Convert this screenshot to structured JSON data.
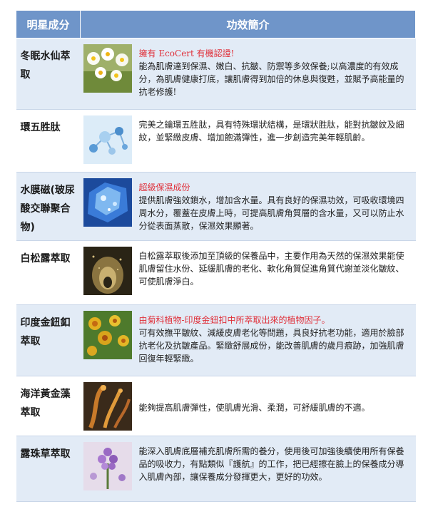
{
  "table": {
    "headers": {
      "ingredient": "明星成分",
      "effect": "功效簡介"
    },
    "rows": [
      {
        "name": "冬眠水仙萃取",
        "image_icon": "daffodil-flowers-image",
        "highlight": "擁有 EcoCert 有機認證!",
        "text": "能為肌膚達到保濕、嫩白、抗皺、防禦等多效保養;以高濃度的有效成分，為肌膚健康打底，讓肌膚得到加倍的休息與復甦，並賦予高能量的抗老修護!"
      },
      {
        "name": "環五胜肽",
        "image_icon": "molecule-structure-image",
        "highlight": "",
        "text": "完美之鑰環五胜肽，具有特殊環狀結構，是環狀胜肽，能對抗皺紋及細紋，並緊緻皮膚、增加飽滿彈性，進一步創造完美年輕肌齡。"
      },
      {
        "name": "水膜磁(玻尿酸交聯聚合物)",
        "image_icon": "water-crystal-image",
        "highlight": "超級保濕成份",
        "text": "提供肌膚強效鎖水，增加含水量。具有良好的保濕功效，可吸收環境四周水分，覆蓋在皮膚上時，可提高肌膚角質層的含水量，又可以防止水分從表面蒸散，保濕效果顯著。"
      },
      {
        "name": "白松露萃取",
        "image_icon": "golden-particles-image",
        "highlight": "",
        "text": "白松露萃取後添加至頂級的保養品中，主要作用為天然的保濕效果能使肌膚留住水份、延緩肌膚的老化、軟化角質促進角質代謝並淡化皺紋、可使肌膚淨白。"
      },
      {
        "name": "印度金鈕釦萃取",
        "image_icon": "yellow-button-flowers-image",
        "highlight": "由菊科植物-印度金鈕扣中所萃取出來的植物因子。",
        "text": "可有效撫平皺紋、減緩皮膚老化等問題，具良好抗老功能，適用於臉部抗老化及抗皺產品。緊緻舒展成份，能改善肌膚的歲月痕跡，加強肌膚回復年輕緊緻。"
      },
      {
        "name": "海洋黃金藻萃取",
        "image_icon": "golden-seaweed-image",
        "highlight": "",
        "text": "能夠提高肌膚彈性，使肌膚光滑、柔潤，可舒緩肌膚的不適。"
      },
      {
        "name": "露珠草萃取",
        "image_icon": "purple-flowers-image",
        "highlight": "",
        "text": "能深入肌膚底層補充肌膚所需的養分，使用後可加強後續使用所有保養品的吸收力，有點類似『護航』的工作，把已經擦在臉上的保養成分導入肌膚內部，讓保養成分發揮更大，更好的功效。"
      }
    ]
  }
}
